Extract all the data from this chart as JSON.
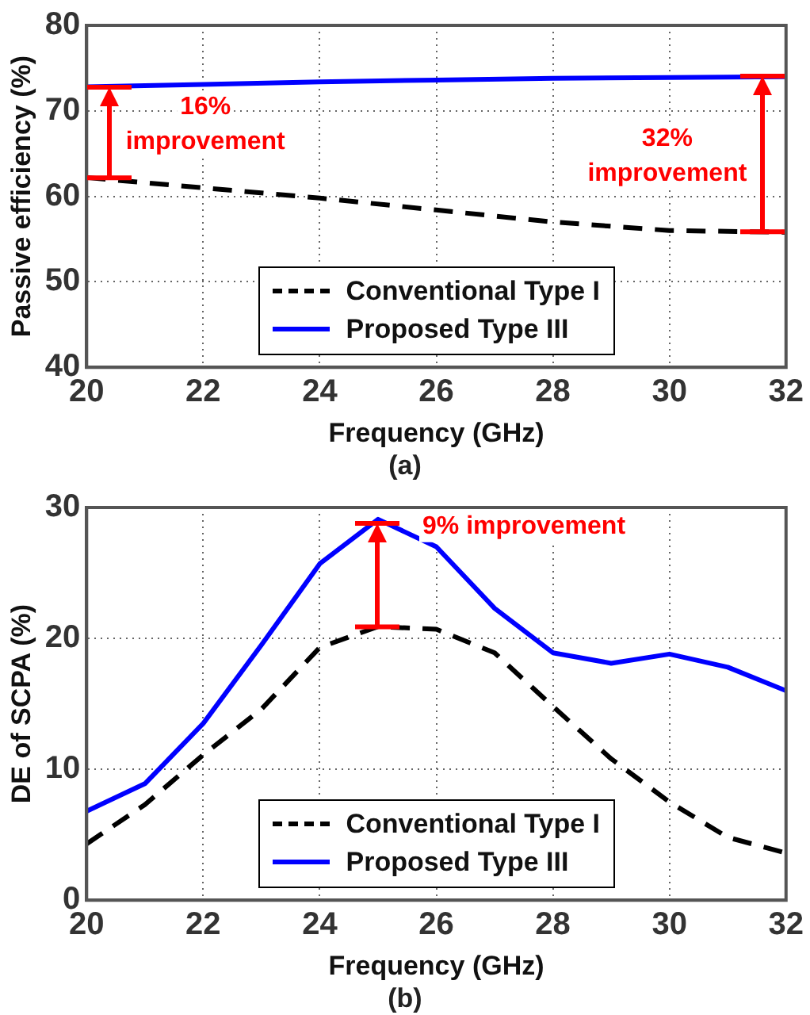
{
  "chart_data": [
    {
      "type": "line",
      "xlabel": "Frequency (GHz)",
      "ylabel": "Passive efficiency (%)",
      "x": [
        20,
        22,
        24,
        26,
        28,
        30,
        32
      ],
      "series": [
        {
          "name": "Conventional Type I",
          "color": "#000000",
          "line_style": "dashed",
          "values": [
            62.2,
            61.0,
            59.8,
            58.4,
            57.0,
            56.0,
            55.8
          ]
        },
        {
          "name": "Proposed Type III",
          "color": "#0000ff",
          "line_style": "solid",
          "values": [
            72.8,
            73.1,
            73.4,
            73.6,
            73.8,
            73.9,
            74.0
          ]
        }
      ],
      "xlim": [
        20,
        32
      ],
      "xticks": [
        20,
        22,
        24,
        26,
        28,
        30,
        32
      ],
      "ylim": [
        40,
        80
      ],
      "yticks": [
        40,
        50,
        60,
        70,
        80
      ],
      "grid": true,
      "legend": "bottom",
      "marker": "none",
      "annotations": [
        {
          "text": "16%\nimprovement",
          "x": 20.4,
          "y": 72.8
        },
        {
          "text": "32%\nimprovement",
          "x": 31.6,
          "y": 74.0
        },
        "(a)"
      ]
    },
    {
      "type": "line",
      "xlabel": "Frequency (GHz)",
      "ylabel": "DE of SCPA (%)",
      "x": [
        20,
        21,
        22,
        23,
        24,
        25,
        26,
        27,
        28,
        29,
        30,
        31,
        32
      ],
      "series": [
        {
          "name": "Conventional Type I",
          "color": "#000000",
          "line_style": "dashed",
          "values": [
            4.3,
            7.3,
            11.1,
            14.6,
            19.3,
            20.9,
            20.7,
            18.9,
            14.8,
            10.8,
            7.5,
            4.8,
            3.6
          ]
        },
        {
          "name": "Proposed Type III",
          "color": "#0000ff",
          "line_style": "solid",
          "values": [
            6.8,
            8.9,
            13.5,
            19.5,
            25.7,
            29.1,
            27.0,
            22.3,
            18.9,
            18.1,
            18.8,
            17.8,
            16.0
          ]
        }
      ],
      "xlim": [
        20,
        32
      ],
      "xticks": [
        20,
        22,
        24,
        26,
        28,
        30,
        32
      ],
      "ylim": [
        0,
        30
      ],
      "yticks": [
        0,
        10,
        20,
        30
      ],
      "grid": true,
      "legend": "bottom",
      "marker": "none",
      "annotations": [
        {
          "text": "9% improvement",
          "x": 25,
          "y": 28.8
        },
        "(b)"
      ]
    }
  ]
}
